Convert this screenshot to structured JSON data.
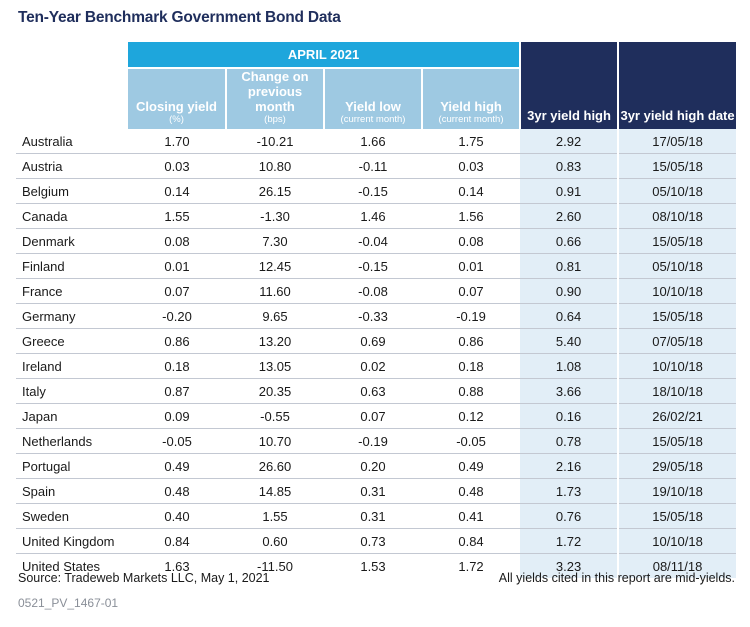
{
  "title": "Ten-Year Benchmark Government Bond Data",
  "header": {
    "group_label": "APRIL 2021",
    "col_closing": "Closing yield",
    "col_closing_note": "(%)",
    "col_change": "Change on previous month",
    "col_change_note": "(bps)",
    "col_low": "Yield low",
    "col_low_note": "(current month)",
    "col_high": "Yield high",
    "col_high_note": "(current month)",
    "col_3yr_high": "3yr yield high",
    "col_3yr_date": "3yr yield high date"
  },
  "rows": [
    {
      "country": "Australia",
      "closing": "1.70",
      "change": "-10.21",
      "low": "1.66",
      "high": "1.75",
      "high3": "2.92",
      "date3": "17/05/18"
    },
    {
      "country": "Austria",
      "closing": "0.03",
      "change": "10.80",
      "low": "-0.11",
      "high": "0.03",
      "high3": "0.83",
      "date3": "15/05/18"
    },
    {
      "country": "Belgium",
      "closing": "0.14",
      "change": "26.15",
      "low": "-0.15",
      "high": "0.14",
      "high3": "0.91",
      "date3": "05/10/18"
    },
    {
      "country": "Canada",
      "closing": "1.55",
      "change": "-1.30",
      "low": "1.46",
      "high": "1.56",
      "high3": "2.60",
      "date3": "08/10/18"
    },
    {
      "country": "Denmark",
      "closing": "0.08",
      "change": "7.30",
      "low": "-0.04",
      "high": "0.08",
      "high3": "0.66",
      "date3": "15/05/18"
    },
    {
      "country": "Finland",
      "closing": "0.01",
      "change": "12.45",
      "low": "-0.15",
      "high": "0.01",
      "high3": "0.81",
      "date3": "05/10/18"
    },
    {
      "country": "France",
      "closing": "0.07",
      "change": "11.60",
      "low": "-0.08",
      "high": "0.07",
      "high3": "0.90",
      "date3": "10/10/18"
    },
    {
      "country": "Germany",
      "closing": "-0.20",
      "change": "9.65",
      "low": "-0.33",
      "high": "-0.19",
      "high3": "0.64",
      "date3": "15/05/18"
    },
    {
      "country": "Greece",
      "closing": "0.86",
      "change": "13.20",
      "low": "0.69",
      "high": "0.86",
      "high3": "5.40",
      "date3": "07/05/18"
    },
    {
      "country": "Ireland",
      "closing": "0.18",
      "change": "13.05",
      "low": "0.02",
      "high": "0.18",
      "high3": "1.08",
      "date3": "10/10/18"
    },
    {
      "country": "Italy",
      "closing": "0.87",
      "change": "20.35",
      "low": "0.63",
      "high": "0.88",
      "high3": "3.66",
      "date3": "18/10/18"
    },
    {
      "country": "Japan",
      "closing": "0.09",
      "change": "-0.55",
      "low": "0.07",
      "high": "0.12",
      "high3": "0.16",
      "date3": "26/02/21"
    },
    {
      "country": "Netherlands",
      "closing": "-0.05",
      "change": "10.70",
      "low": "-0.19",
      "high": "-0.05",
      "high3": "0.78",
      "date3": "15/05/18"
    },
    {
      "country": "Portugal",
      "closing": "0.49",
      "change": "26.60",
      "low": "0.20",
      "high": "0.49",
      "high3": "2.16",
      "date3": "29/05/18"
    },
    {
      "country": "Spain",
      "closing": "0.48",
      "change": "14.85",
      "low": "0.31",
      "high": "0.48",
      "high3": "1.73",
      "date3": "19/10/18"
    },
    {
      "country": "Sweden",
      "closing": "0.40",
      "change": "1.55",
      "low": "0.31",
      "high": "0.41",
      "high3": "0.76",
      "date3": "15/05/18"
    },
    {
      "country": "United Kingdom",
      "closing": "0.84",
      "change": "0.60",
      "low": "0.73",
      "high": "0.84",
      "high3": "1.72",
      "date3": "10/10/18"
    },
    {
      "country": "United States",
      "closing": "1.63",
      "change": "-11.50",
      "low": "1.53",
      "high": "1.72",
      "high3": "3.23",
      "date3": "08/11/18"
    }
  ],
  "source": "Source: Tradeweb Markets LLC, May 1, 2021",
  "footnote": "All yields cited in this report are mid-yields.",
  "doc_code": "0521_PV_1467-01",
  "colors": {
    "title": "#1f2e5c",
    "group_header": "#1ea6dc",
    "sub_header": "#9ec9e2",
    "dark_header": "#1f2e5c",
    "highlight_cell": "#e2eef7"
  }
}
